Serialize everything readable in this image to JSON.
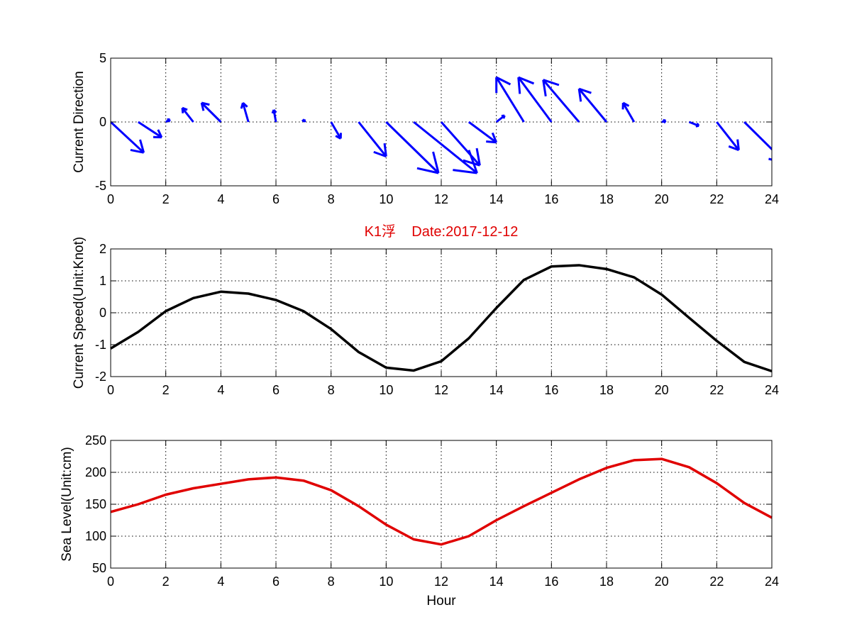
{
  "figure": {
    "title": "K1浮    Date:2017-12-12",
    "title_color": "#e00000"
  },
  "chart_data": [
    {
      "type": "scatter",
      "subtype": "quiver",
      "ylabel": "Current Direction",
      "xlabel": "",
      "xlim": [
        0,
        24
      ],
      "ylim": [
        -5,
        5
      ],
      "xticks": [
        0,
        2,
        4,
        6,
        8,
        10,
        12,
        14,
        16,
        18,
        20,
        22,
        24
      ],
      "yticks": [
        -5,
        0,
        5
      ],
      "grid": true,
      "color": "#0000ff",
      "x": [
        0,
        1,
        2,
        3,
        4,
        5,
        6,
        7,
        8,
        9,
        10,
        11,
        12,
        13,
        14,
        15,
        16,
        17,
        18,
        19,
        20,
        21,
        22,
        23
      ],
      "u": [
        1.2,
        0.85,
        0.15,
        -0.4,
        -0.7,
        -0.2,
        -0.08,
        0.03,
        0.35,
        1.0,
        1.9,
        2.3,
        1.4,
        1.0,
        0.3,
        -1.0,
        -1.2,
        -1.3,
        -1.0,
        -0.4,
        0.15,
        0.35,
        0.8,
        1.5
      ],
      "v": [
        -2.4,
        -1.2,
        0.2,
        1.1,
        1.5,
        1.5,
        0.95,
        0.2,
        -1.3,
        -2.7,
        -4.0,
        -4.0,
        -3.4,
        -1.6,
        0.5,
        3.5,
        3.5,
        3.3,
        2.6,
        1.5,
        0.1,
        -0.3,
        -2.2,
        -3.2
      ]
    },
    {
      "type": "line",
      "ylabel": "Current Speed(Unit:Knot)",
      "xlabel": "",
      "xlim": [
        0,
        24
      ],
      "ylim": [
        -2,
        2
      ],
      "xticks": [
        0,
        2,
        4,
        6,
        8,
        10,
        12,
        14,
        16,
        18,
        20,
        22,
        24
      ],
      "yticks": [
        -2,
        -1,
        0,
        1,
        2
      ],
      "grid": true,
      "color": "#000000",
      "x": [
        0,
        1,
        2,
        3,
        4,
        5,
        6,
        7,
        8,
        9,
        10,
        11,
        12,
        13,
        14,
        15,
        16,
        17,
        18,
        19,
        20,
        21,
        22,
        23,
        24
      ],
      "y": [
        -1.12,
        -0.6,
        0.05,
        0.46,
        0.66,
        0.6,
        0.4,
        0.05,
        -0.51,
        -1.23,
        -1.72,
        -1.81,
        -1.52,
        -0.8,
        0.15,
        1.03,
        1.45,
        1.49,
        1.37,
        1.11,
        0.57,
        -0.16,
        -0.88,
        -1.54,
        -1.83
      ]
    },
    {
      "type": "line",
      "ylabel": "Sea Level(Unit:cm)",
      "xlabel": "Hour",
      "xlim": [
        0,
        24
      ],
      "ylim": [
        50,
        250
      ],
      "xticks": [
        0,
        2,
        4,
        6,
        8,
        10,
        12,
        14,
        16,
        18,
        20,
        22,
        24
      ],
      "yticks": [
        50,
        100,
        150,
        200,
        250
      ],
      "grid": true,
      "color": "#e00000",
      "x": [
        0,
        1,
        2,
        3,
        4,
        5,
        6,
        7,
        8,
        9,
        10,
        11,
        12,
        13,
        14,
        15,
        16,
        17,
        18,
        19,
        20,
        21,
        22,
        23,
        24
      ],
      "y": [
        138,
        150,
        165,
        175,
        182,
        189,
        192,
        187,
        172,
        147,
        118,
        95,
        87,
        100,
        125,
        147,
        168,
        189,
        207,
        219,
        221,
        208,
        183,
        152,
        129
      ]
    }
  ]
}
